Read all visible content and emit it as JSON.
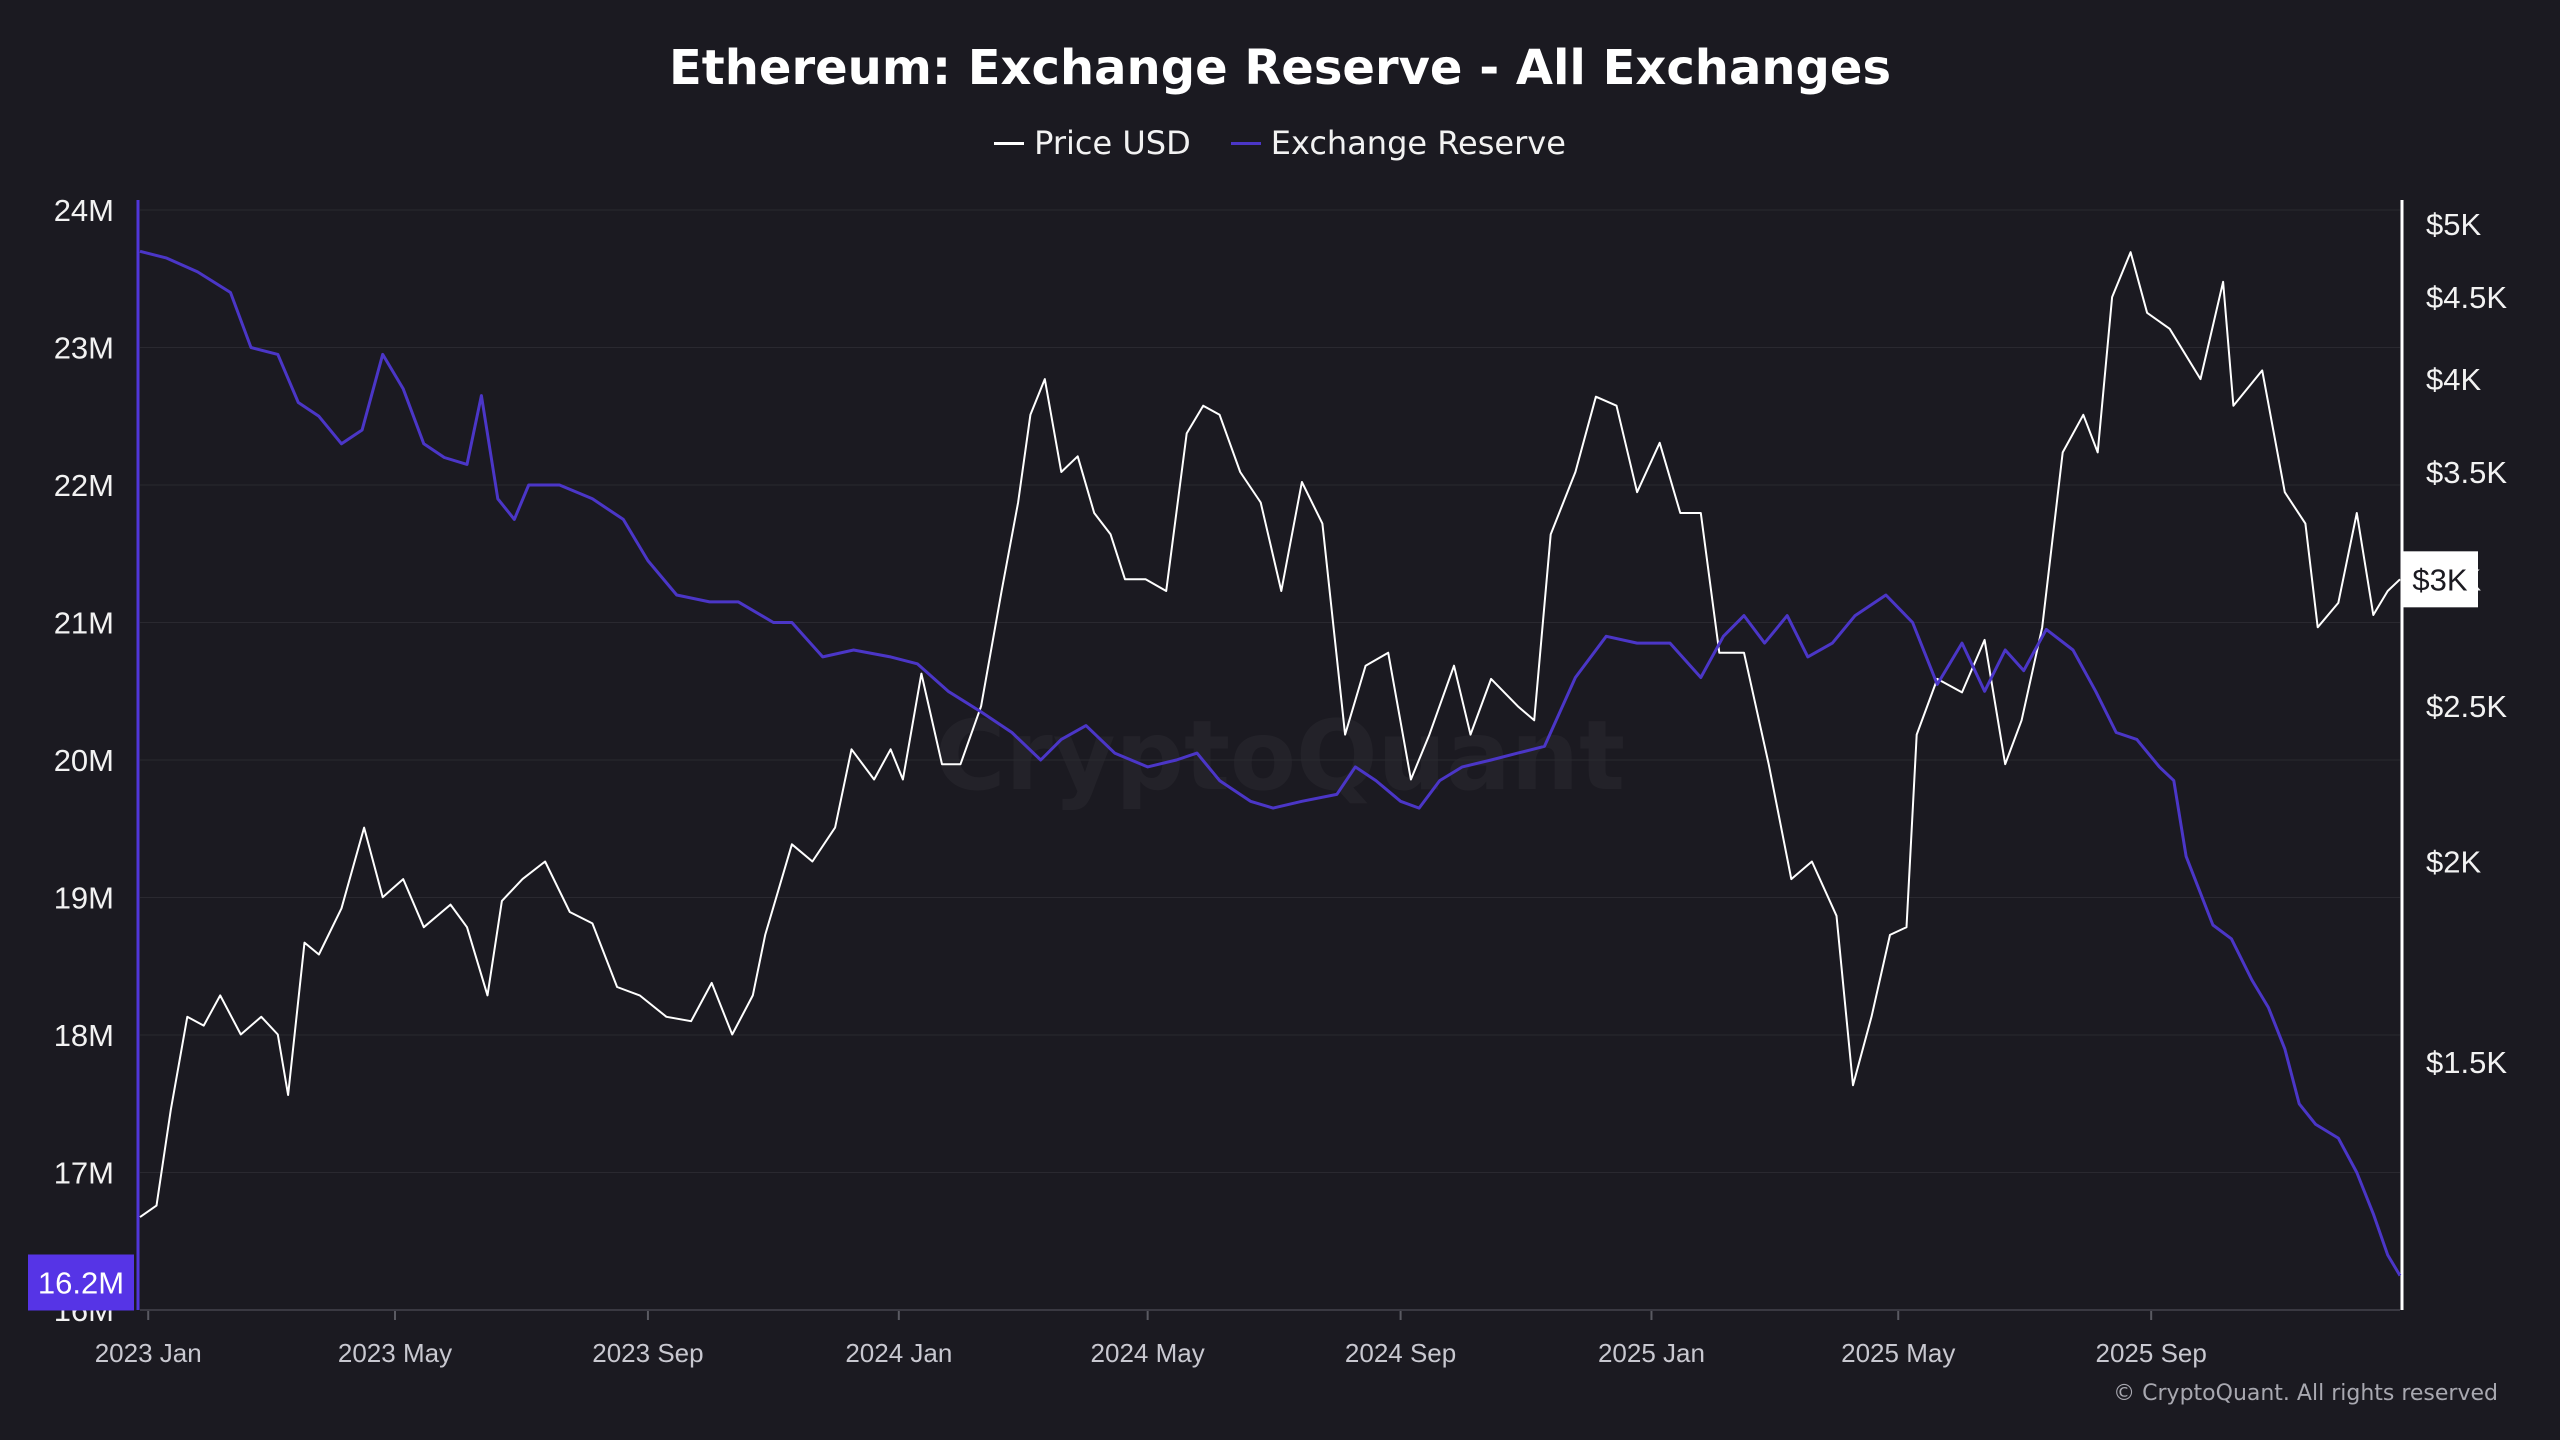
{
  "colors": {
    "background": "#1b1a21",
    "price": "#ffffff",
    "reserve": "#4b36c7",
    "reserve_badge": "#5634e6",
    "grid": "#2a2930",
    "left_axis": "#5036d8",
    "right_axis": "#ffffff"
  },
  "watermark": "CryptoQuant",
  "copyright": "© CryptoQuant. All rights reserved",
  "chart_data": {
    "type": "line",
    "title": "Ethereum: Exchange Reserve - All Exchanges",
    "legend_position": "top-center",
    "grid": true,
    "x_ticks": [
      {
        "date": "2023-01-01",
        "label": "2023 Jan"
      },
      {
        "date": "2023-05-01",
        "label": "2023 May"
      },
      {
        "date": "2023-09-01",
        "label": "2023 Sep"
      },
      {
        "date": "2024-01-01",
        "label": "2024 Jan"
      },
      {
        "date": "2024-05-01",
        "label": "2024 May"
      },
      {
        "date": "2024-09-01",
        "label": "2024 Sep"
      },
      {
        "date": "2025-01-01",
        "label": "2025 Jan"
      },
      {
        "date": "2025-05-01",
        "label": "2025 May"
      },
      {
        "date": "2025-09-01",
        "label": "2025 Sep"
      }
    ],
    "x_range": [
      "2022-12-28",
      "2025-12-31"
    ],
    "y_left": {
      "label": "",
      "range": [
        16000000,
        24000000
      ],
      "ticks": [
        {
          "value": 16000000,
          "label": "16M"
        },
        {
          "value": 17000000,
          "label": "17M"
        },
        {
          "value": 18000000,
          "label": "18M"
        },
        {
          "value": 19000000,
          "label": "19M"
        },
        {
          "value": 20000000,
          "label": "20M"
        },
        {
          "value": 21000000,
          "label": "21M"
        },
        {
          "value": 22000000,
          "label": "22M"
        },
        {
          "value": 23000000,
          "label": "23M"
        },
        {
          "value": 24000000,
          "label": "24M"
        }
      ],
      "current_label": "16.2M",
      "current_value": 16200000
    },
    "y_right": {
      "label": "",
      "scale": "log",
      "range": [
        1050,
        5100
      ],
      "ticks": [
        {
          "value": 1500,
          "label": "$1.5K"
        },
        {
          "value": 2000,
          "label": "$2K"
        },
        {
          "value": 2500,
          "label": "$2.5K"
        },
        {
          "value": 3000,
          "label": "$3K"
        },
        {
          "value": 3500,
          "label": "$3.5K"
        },
        {
          "value": 4000,
          "label": "$4K"
        },
        {
          "value": 4500,
          "label": "$4.5K"
        },
        {
          "value": 5000,
          "label": "$5K"
        }
      ],
      "current_label": "$3K",
      "current_value": 3000
    },
    "series": [
      {
        "name": "Price USD",
        "axis": "right",
        "color": "#ffffff",
        "points": [
          [
            "2022-12-28",
            1200
          ],
          [
            "2023-01-05",
            1220
          ],
          [
            "2023-01-12",
            1400
          ],
          [
            "2023-01-20",
            1600
          ],
          [
            "2023-01-28",
            1580
          ],
          [
            "2023-02-05",
            1650
          ],
          [
            "2023-02-15",
            1560
          ],
          [
            "2023-02-25",
            1600
          ],
          [
            "2023-03-05",
            1560
          ],
          [
            "2023-03-10",
            1430
          ],
          [
            "2023-03-18",
            1780
          ],
          [
            "2023-03-25",
            1750
          ],
          [
            "2023-04-05",
            1870
          ],
          [
            "2023-04-16",
            2100
          ],
          [
            "2023-04-25",
            1900
          ],
          [
            "2023-05-05",
            1950
          ],
          [
            "2023-05-15",
            1820
          ],
          [
            "2023-05-28",
            1880
          ],
          [
            "2023-06-05",
            1820
          ],
          [
            "2023-06-15",
            1650
          ],
          [
            "2023-06-22",
            1890
          ],
          [
            "2023-07-02",
            1950
          ],
          [
            "2023-07-13",
            2000
          ],
          [
            "2023-07-25",
            1860
          ],
          [
            "2023-08-05",
            1830
          ],
          [
            "2023-08-17",
            1670
          ],
          [
            "2023-08-28",
            1650
          ],
          [
            "2023-09-10",
            1600
          ],
          [
            "2023-09-22",
            1590
          ],
          [
            "2023-10-02",
            1680
          ],
          [
            "2023-10-12",
            1560
          ],
          [
            "2023-10-22",
            1650
          ],
          [
            "2023-10-28",
            1800
          ],
          [
            "2023-11-10",
            2050
          ],
          [
            "2023-11-20",
            2000
          ],
          [
            "2023-12-01",
            2100
          ],
          [
            "2023-12-09",
            2350
          ],
          [
            "2023-12-20",
            2250
          ],
          [
            "2023-12-28",
            2350
          ],
          [
            "2024-01-03",
            2250
          ],
          [
            "2024-01-12",
            2620
          ],
          [
            "2024-01-22",
            2300
          ],
          [
            "2024-01-31",
            2300
          ],
          [
            "2024-02-10",
            2500
          ],
          [
            "2024-02-20",
            2950
          ],
          [
            "2024-02-28",
            3350
          ],
          [
            "2024-03-05",
            3800
          ],
          [
            "2024-03-12",
            4000
          ],
          [
            "2024-03-20",
            3500
          ],
          [
            "2024-03-28",
            3580
          ],
          [
            "2024-04-05",
            3300
          ],
          [
            "2024-04-13",
            3200
          ],
          [
            "2024-04-20",
            3000
          ],
          [
            "2024-04-30",
            3000
          ],
          [
            "2024-05-10",
            2950
          ],
          [
            "2024-05-20",
            3700
          ],
          [
            "2024-05-28",
            3850
          ],
          [
            "2024-06-05",
            3800
          ],
          [
            "2024-06-15",
            3500
          ],
          [
            "2024-06-25",
            3350
          ],
          [
            "2024-07-05",
            2950
          ],
          [
            "2024-07-15",
            3450
          ],
          [
            "2024-07-25",
            3250
          ],
          [
            "2024-08-05",
            2400
          ],
          [
            "2024-08-15",
            2650
          ],
          [
            "2024-08-26",
            2700
          ],
          [
            "2024-09-06",
            2250
          ],
          [
            "2024-09-15",
            2400
          ],
          [
            "2024-09-27",
            2650
          ],
          [
            "2024-10-05",
            2400
          ],
          [
            "2024-10-15",
            2600
          ],
          [
            "2024-10-28",
            2500
          ],
          [
            "2024-11-05",
            2450
          ],
          [
            "2024-11-13",
            3200
          ],
          [
            "2024-11-25",
            3500
          ],
          [
            "2024-12-05",
            3900
          ],
          [
            "2024-12-15",
            3850
          ],
          [
            "2024-12-25",
            3400
          ],
          [
            "2025-01-05",
            3650
          ],
          [
            "2025-01-15",
            3300
          ],
          [
            "2025-01-25",
            3300
          ],
          [
            "2025-02-03",
            2700
          ],
          [
            "2025-02-15",
            2700
          ],
          [
            "2025-02-27",
            2300
          ],
          [
            "2025-03-10",
            1950
          ],
          [
            "2025-03-20",
            2000
          ],
          [
            "2025-04-01",
            1850
          ],
          [
            "2025-04-09",
            1450
          ],
          [
            "2025-04-18",
            1600
          ],
          [
            "2025-04-27",
            1800
          ],
          [
            "2025-05-05",
            1820
          ],
          [
            "2025-05-10",
            2400
          ],
          [
            "2025-05-20",
            2600
          ],
          [
            "2025-06-01",
            2550
          ],
          [
            "2025-06-12",
            2750
          ],
          [
            "2025-06-22",
            2300
          ],
          [
            "2025-06-30",
            2450
          ],
          [
            "2025-07-10",
            2800
          ],
          [
            "2025-07-20",
            3600
          ],
          [
            "2025-07-30",
            3800
          ],
          [
            "2025-08-06",
            3600
          ],
          [
            "2025-08-13",
            4500
          ],
          [
            "2025-08-22",
            4800
          ],
          [
            "2025-08-30",
            4400
          ],
          [
            "2025-09-10",
            4300
          ],
          [
            "2025-09-25",
            4000
          ],
          [
            "2025-10-06",
            4600
          ],
          [
            "2025-10-11",
            3850
          ],
          [
            "2025-10-25",
            4050
          ],
          [
            "2025-11-05",
            3400
          ],
          [
            "2025-11-15",
            3250
          ],
          [
            "2025-11-21",
            2800
          ],
          [
            "2025-12-01",
            2900
          ],
          [
            "2025-12-10",
            3300
          ],
          [
            "2025-12-18",
            2850
          ],
          [
            "2025-12-25",
            2950
          ],
          [
            "2025-12-31",
            3000
          ]
        ]
      },
      {
        "name": "Exchange Reserve",
        "axis": "left",
        "color": "#4b36c7",
        "points": [
          [
            "2022-12-28",
            23700000
          ],
          [
            "2023-01-10",
            23650000
          ],
          [
            "2023-01-25",
            23550000
          ],
          [
            "2023-02-10",
            23400000
          ],
          [
            "2023-02-20",
            23000000
          ],
          [
            "2023-03-05",
            22950000
          ],
          [
            "2023-03-15",
            22600000
          ],
          [
            "2023-03-25",
            22500000
          ],
          [
            "2023-04-05",
            22300000
          ],
          [
            "2023-04-15",
            22400000
          ],
          [
            "2023-04-25",
            22950000
          ],
          [
            "2023-05-05",
            22700000
          ],
          [
            "2023-05-15",
            22300000
          ],
          [
            "2023-05-25",
            22200000
          ],
          [
            "2023-06-05",
            22150000
          ],
          [
            "2023-06-12",
            22650000
          ],
          [
            "2023-06-20",
            21900000
          ],
          [
            "2023-06-28",
            21750000
          ],
          [
            "2023-07-05",
            22000000
          ],
          [
            "2023-07-20",
            22000000
          ],
          [
            "2023-08-05",
            21900000
          ],
          [
            "2023-08-20",
            21750000
          ],
          [
            "2023-09-01",
            21450000
          ],
          [
            "2023-09-15",
            21200000
          ],
          [
            "2023-10-01",
            21150000
          ],
          [
            "2023-10-15",
            21150000
          ],
          [
            "2023-11-01",
            21000000
          ],
          [
            "2023-11-10",
            21000000
          ],
          [
            "2023-11-25",
            20750000
          ],
          [
            "2023-12-10",
            20800000
          ],
          [
            "2023-12-28",
            20750000
          ],
          [
            "2024-01-10",
            20700000
          ],
          [
            "2024-01-25",
            20500000
          ],
          [
            "2024-02-10",
            20350000
          ],
          [
            "2024-02-25",
            20200000
          ],
          [
            "2024-03-10",
            20000000
          ],
          [
            "2024-03-20",
            20150000
          ],
          [
            "2024-04-01",
            20250000
          ],
          [
            "2024-04-15",
            20050000
          ],
          [
            "2024-05-01",
            19950000
          ],
          [
            "2024-05-15",
            20000000
          ],
          [
            "2024-05-25",
            20050000
          ],
          [
            "2024-06-05",
            19850000
          ],
          [
            "2024-06-20",
            19700000
          ],
          [
            "2024-07-01",
            19650000
          ],
          [
            "2024-07-15",
            19700000
          ],
          [
            "2024-08-01",
            19750000
          ],
          [
            "2024-08-10",
            19950000
          ],
          [
            "2024-08-20",
            19850000
          ],
          [
            "2024-09-01",
            19700000
          ],
          [
            "2024-09-10",
            19650000
          ],
          [
            "2024-09-20",
            19850000
          ],
          [
            "2024-10-01",
            19950000
          ],
          [
            "2024-10-15",
            20000000
          ],
          [
            "2024-10-28",
            20050000
          ],
          [
            "2024-11-10",
            20100000
          ],
          [
            "2024-11-25",
            20600000
          ],
          [
            "2024-12-10",
            20900000
          ],
          [
            "2024-12-25",
            20850000
          ],
          [
            "2025-01-10",
            20850000
          ],
          [
            "2025-01-25",
            20600000
          ],
          [
            "2025-02-05",
            20900000
          ],
          [
            "2025-02-15",
            21050000
          ],
          [
            "2025-02-25",
            20850000
          ],
          [
            "2025-03-08",
            21050000
          ],
          [
            "2025-03-18",
            20750000
          ],
          [
            "2025-03-30",
            20850000
          ],
          [
            "2025-04-10",
            21050000
          ],
          [
            "2025-04-25",
            21200000
          ],
          [
            "2025-05-08",
            21000000
          ],
          [
            "2025-05-20",
            20550000
          ],
          [
            "2025-06-01",
            20850000
          ],
          [
            "2025-06-12",
            20500000
          ],
          [
            "2025-06-22",
            20800000
          ],
          [
            "2025-07-01",
            20650000
          ],
          [
            "2025-07-12",
            20950000
          ],
          [
            "2025-07-25",
            20800000
          ],
          [
            "2025-08-05",
            20500000
          ],
          [
            "2025-08-15",
            20200000
          ],
          [
            "2025-08-25",
            20150000
          ],
          [
            "2025-09-05",
            19950000
          ],
          [
            "2025-09-12",
            19850000
          ],
          [
            "2025-09-18",
            19300000
          ],
          [
            "2025-10-01",
            18800000
          ],
          [
            "2025-10-10",
            18700000
          ],
          [
            "2025-10-20",
            18400000
          ],
          [
            "2025-10-28",
            18200000
          ],
          [
            "2025-11-05",
            17900000
          ],
          [
            "2025-11-12",
            17500000
          ],
          [
            "2025-11-20",
            17350000
          ],
          [
            "2025-12-01",
            17250000
          ],
          [
            "2025-12-10",
            17000000
          ],
          [
            "2025-12-18",
            16700000
          ],
          [
            "2025-12-25",
            16400000
          ],
          [
            "2025-12-31",
            16250000
          ]
        ]
      }
    ]
  }
}
